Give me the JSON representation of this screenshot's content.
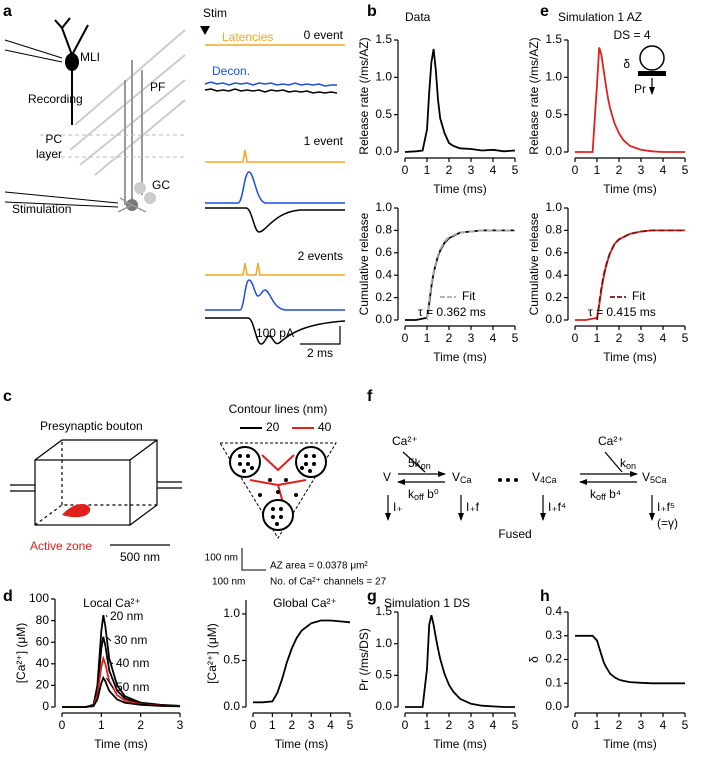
{
  "figure": {
    "panel_labels": [
      "a",
      "b",
      "c",
      "d",
      "e",
      "f",
      "g",
      "h"
    ],
    "a": {
      "mli": "MLI",
      "recording": "Recording",
      "pf": "PF",
      "pc_layer": [
        "PC",
        "layer"
      ],
      "stimulation": "Stimulation",
      "gc": "GC",
      "stim": "Stim",
      "latencies": "Latencies",
      "decon": "Decon.",
      "events": [
        "0 event",
        "1 event",
        "2 events"
      ],
      "scale_y": "100 pA",
      "scale_x": "2 ms"
    },
    "c": {
      "bouton": "Presynaptic bouton",
      "active_zone": "Active zone",
      "scale": "500 nm",
      "contour_title": "Contour lines (nm)",
      "contour_levels": [
        20,
        40
      ],
      "scale_bars": [
        "100 nm",
        "100 nm"
      ],
      "az_area": "AZ area = 0.0378 μm²",
      "channels": "No. of Ca²⁺ channels = 27"
    },
    "f": {
      "ca": [
        "Ca²⁺",
        "Ca²⁺"
      ],
      "rates": [
        [
          "5k",
          "on"
        ],
        [
          "k",
          "off",
          " b⁰"
        ],
        [
          "k",
          "on"
        ],
        [
          "k",
          "off",
          " b⁴"
        ]
      ],
      "states": [
        [
          "V"
        ],
        [
          "V",
          "Ca"
        ],
        [
          "V",
          "4Ca"
        ],
        [
          "V",
          "5Ca"
        ]
      ],
      "fusion": [
        "I₊",
        "I₊f",
        "I₊f⁴",
        "I₊f⁵"
      ],
      "gamma": "(=γ)",
      "fused": "Fused"
    }
  },
  "chart_data": [
    {
      "type": "line",
      "title": "Data",
      "x_label": "Time (ms)",
      "y_label": "Release rate (/ms/AZ)",
      "xlim": [
        0,
        5
      ],
      "xticks": [
        0,
        1,
        2,
        3,
        4,
        5
      ],
      "ylim": [
        0,
        1.5
      ],
      "yticks": [
        {
          "value": 0,
          "label": "0.0"
        },
        0.5,
        {
          "value": 1,
          "label": "1.0"
        },
        1.5
      ],
      "x": [
        0,
        0.5,
        0.8,
        1.0,
        1.1,
        1.2,
        1.3,
        1.4,
        1.5,
        1.6,
        1.8,
        2.0,
        2.2,
        2.5,
        3,
        3.5,
        4,
        4.5,
        5
      ],
      "series": [
        {
          "color": "#000000",
          "values": [
            0,
            0.01,
            0.02,
            0.3,
            0.8,
            1.2,
            1.38,
            1.1,
            0.7,
            0.45,
            0.25,
            0.12,
            0.08,
            0.05,
            0.04,
            0.02,
            0.03,
            0.01,
            0.02
          ]
        }
      ]
    },
    {
      "type": "line",
      "x_label": "Time (ms)",
      "y_label": "Cumulative release",
      "legend": "lower right",
      "annotations": [
        "τ = 0.362 ms"
      ],
      "xlim": [
        0,
        5
      ],
      "xticks": [
        0,
        1,
        2,
        3,
        4,
        5
      ],
      "ylim": [
        0,
        1
      ],
      "yticks": [
        {
          "value": 0,
          "label": "0.0"
        },
        0.2,
        0.4,
        0.6,
        0.8,
        {
          "value": 1,
          "label": "1.0"
        }
      ],
      "x": [
        0,
        0.5,
        1.0,
        1.1,
        1.2,
        1.3,
        1.4,
        1.5,
        1.6,
        1.8,
        2.0,
        2.5,
        3,
        3.5,
        4,
        4.5,
        5
      ],
      "series": [
        {
          "color": "#000000",
          "values": [
            0,
            0,
            0.02,
            0.15,
            0.3,
            0.42,
            0.5,
            0.57,
            0.62,
            0.69,
            0.73,
            0.78,
            0.79,
            0.8,
            0.8,
            0.8,
            0.8
          ]
        },
        {
          "name": "Fit",
          "color": "#aaaaaa",
          "dash": true,
          "values": [
            null,
            null,
            0,
            0.18,
            0.32,
            0.43,
            0.51,
            0.58,
            0.63,
            0.7,
            0.74,
            0.78,
            0.79,
            0.8,
            0.8,
            0.8,
            0.8
          ]
        }
      ]
    },
    {
      "type": "line",
      "title": "Simulation 1 AZ",
      "x_label": "Time (ms)",
      "y_label": "Release rate (/ms/AZ)",
      "annotations": [
        "DS = 4",
        "δ",
        "Pr"
      ],
      "xlim": [
        0,
        5
      ],
      "xticks": [
        0,
        1,
        2,
        3,
        4,
        5
      ],
      "ylim": [
        0,
        1.5
      ],
      "yticks": [
        {
          "value": 0,
          "label": "0.0"
        },
        0.5,
        {
          "value": 1,
          "label": "1.0"
        },
        1.5
      ],
      "x": [
        0,
        0.5,
        0.8,
        1.0,
        1.1,
        1.2,
        1.3,
        1.4,
        1.5,
        1.6,
        1.8,
        2.0,
        2.2,
        2.5,
        3,
        3.5,
        4,
        4.5,
        5
      ],
      "series": [
        {
          "color": "#e0201b",
          "values": [
            0,
            0,
            0,
            0.9,
            1.4,
            1.3,
            1.1,
            0.9,
            0.72,
            0.58,
            0.38,
            0.25,
            0.16,
            0.08,
            0.03,
            0.01,
            0,
            0,
            0
          ]
        }
      ]
    },
    {
      "type": "line",
      "x_label": "Time (ms)",
      "y_label": "Cumulative release",
      "legend": "lower right",
      "annotations": [
        "τ = 0.415 ms"
      ],
      "xlim": [
        0,
        5
      ],
      "xticks": [
        0,
        1,
        2,
        3,
        4,
        5
      ],
      "ylim": [
        0,
        1
      ],
      "yticks": [
        {
          "value": 0,
          "label": "0.0"
        },
        0.2,
        0.4,
        0.6,
        0.8,
        {
          "value": 1,
          "label": "1.0"
        }
      ],
      "x": [
        0,
        0.5,
        1.0,
        1.1,
        1.2,
        1.3,
        1.4,
        1.5,
        1.6,
        1.8,
        2.0,
        2.5,
        3,
        3.5,
        4,
        4.5,
        5
      ],
      "series": [
        {
          "color": "#e0201b",
          "values": [
            0,
            0,
            0.02,
            0.13,
            0.27,
            0.38,
            0.47,
            0.54,
            0.6,
            0.68,
            0.72,
            0.77,
            0.79,
            0.8,
            0.8,
            0.8,
            0.8
          ]
        },
        {
          "name": "Fit",
          "color": "#7a1010",
          "dash": true,
          "values": [
            null,
            null,
            0,
            0.15,
            0.29,
            0.4,
            0.48,
            0.55,
            0.6,
            0.68,
            0.72,
            0.77,
            0.79,
            0.8,
            0.8,
            0.8,
            0.8
          ]
        }
      ]
    },
    {
      "type": "line",
      "title": "Local Ca²⁺",
      "x_label": "Time (ms)",
      "y_label": "[Ca²⁺] (μM)",
      "legend": "inline",
      "xlim": [
        0,
        3
      ],
      "xticks": [
        0,
        1,
        2,
        3
      ],
      "ylim": [
        0,
        100
      ],
      "yticks": [
        0,
        20,
        40,
        60,
        80,
        100
      ],
      "x": [
        0,
        0.6,
        0.8,
        0.9,
        1.0,
        1.05,
        1.1,
        1.2,
        1.4,
        1.6,
        2,
        2.5,
        3
      ],
      "series": [
        {
          "name": "20 nm",
          "color": "#000000",
          "values": [
            0,
            0,
            2,
            20,
            70,
            85,
            75,
            45,
            20,
            10,
            4,
            2,
            1
          ]
        },
        {
          "name": "30 nm",
          "color": "#000000",
          "values": [
            0,
            0,
            1.5,
            15,
            54,
            65,
            57,
            34,
            15,
            8,
            3,
            1.5,
            1
          ]
        },
        {
          "name": "40 nm",
          "color": "#e0201b",
          "values": [
            0,
            0,
            1,
            11,
            37,
            45,
            40,
            24,
            11,
            6,
            2.5,
            1.2,
            0.8
          ]
        },
        {
          "name": "50 nm",
          "color": "#000000",
          "values": [
            0,
            0,
            0.7,
            7,
            22,
            27,
            24,
            15,
            7,
            4,
            2,
            1,
            0.6
          ]
        }
      ]
    },
    {
      "type": "line",
      "title": "Global Ca²⁺",
      "x_label": "Time (ms)",
      "y_label": "[Ca²⁺] (μM)",
      "xlim": [
        0,
        5
      ],
      "xticks": [
        0,
        1,
        2,
        3,
        4,
        5
      ],
      "ylim": [
        0,
        1.15
      ],
      "yticks": [
        {
          "value": 0,
          "label": "0.0"
        },
        0.5,
        {
          "value": 1,
          "label": "1.0"
        }
      ],
      "x": [
        0,
        0.5,
        1,
        1.25,
        1.5,
        1.75,
        2,
        2.25,
        2.5,
        3,
        3.5,
        4,
        4.5,
        5
      ],
      "series": [
        {
          "color": "#000000",
          "values": [
            0.05,
            0.05,
            0.06,
            0.15,
            0.3,
            0.48,
            0.63,
            0.74,
            0.82,
            0.9,
            0.93,
            0.93,
            0.92,
            0.91
          ]
        }
      ]
    },
    {
      "type": "line",
      "title": "Simulation 1 DS",
      "x_label": "Time (ms)",
      "y_label": "Pr (/ms/DS)",
      "xlim": [
        0,
        5
      ],
      "xticks": [
        0,
        1,
        2,
        3,
        4,
        5
      ],
      "ylim": [
        0,
        1.5
      ],
      "yticks": [
        {
          "value": 0,
          "label": "0.0"
        },
        0.5,
        {
          "value": 1,
          "label": "1.0"
        },
        1.5
      ],
      "x": [
        0,
        0.5,
        0.8,
        1.0,
        1.1,
        1.2,
        1.3,
        1.4,
        1.5,
        1.6,
        1.8,
        2.0,
        2.2,
        2.5,
        3,
        3.5,
        4,
        4.5,
        5
      ],
      "series": [
        {
          "color": "#000000",
          "values": [
            0,
            0,
            0,
            0.6,
            1.3,
            1.45,
            1.3,
            1.1,
            0.92,
            0.76,
            0.52,
            0.35,
            0.24,
            0.13,
            0.05,
            0.02,
            0.01,
            0,
            0
          ]
        }
      ]
    },
    {
      "type": "line",
      "x_label": "Time (ms)",
      "y_label": "δ",
      "xlim": [
        0,
        5
      ],
      "xticks": [
        0,
        1,
        2,
        3,
        4,
        5
      ],
      "ylim": [
        0,
        0.4
      ],
      "yticks": [
        {
          "value": 0,
          "label": "0.0"
        },
        0.1,
        0.2,
        0.3,
        0.4
      ],
      "x": [
        0,
        0.5,
        0.8,
        1.0,
        1.1,
        1.2,
        1.3,
        1.4,
        1.5,
        1.6,
        1.8,
        2.0,
        2.2,
        2.5,
        3,
        3.5,
        4,
        4.5,
        5
      ],
      "series": [
        {
          "color": "#000000",
          "values": [
            0.3,
            0.3,
            0.3,
            0.28,
            0.25,
            0.22,
            0.19,
            0.17,
            0.155,
            0.14,
            0.125,
            0.115,
            0.11,
            0.105,
            0.102,
            0.1,
            0.1,
            0.1,
            0.1
          ]
        }
      ]
    }
  ]
}
